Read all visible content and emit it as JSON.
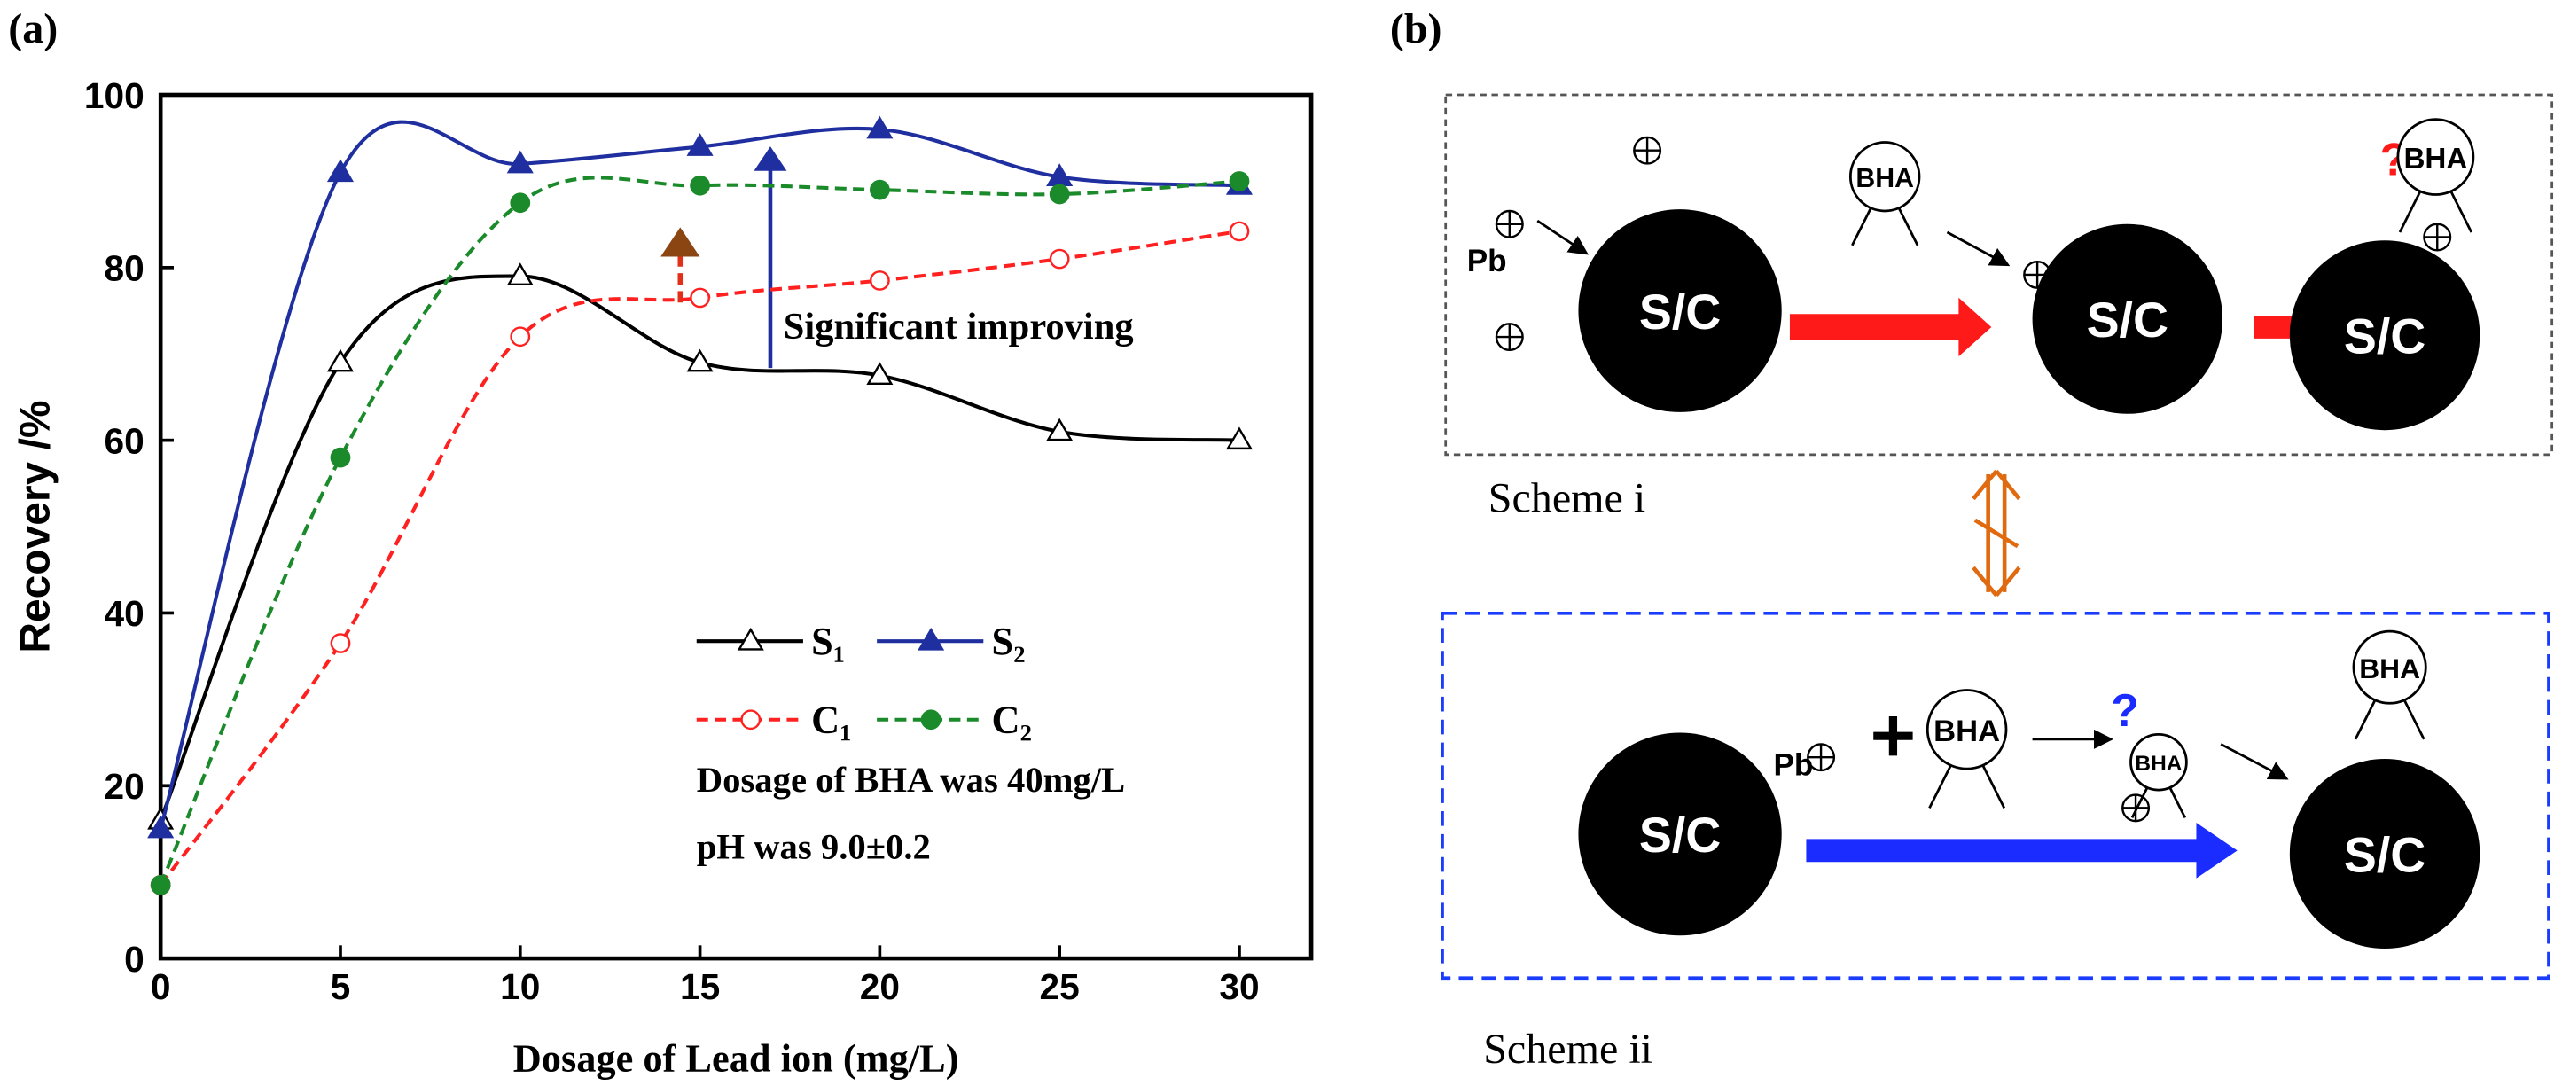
{
  "chart_data": {
    "type": "line",
    "panel_label": "(a)",
    "xlabel": "Dosage of Lead ion (mg/L)",
    "ylabel": "Recovery /%",
    "x": [
      0,
      5,
      10,
      15,
      20,
      25,
      30
    ],
    "series": [
      {
        "name": "S₁",
        "color": "#000000",
        "marker": "triangle",
        "filled": false,
        "dashed": false,
        "values": [
          16,
          69,
          79,
          69,
          67.5,
          61,
          60
        ]
      },
      {
        "name": "S₂",
        "color": "#1f2f9f",
        "marker": "triangle",
        "filled": true,
        "dashed": false,
        "values": [
          15,
          91,
          92,
          94,
          96,
          90.5,
          89.5
        ]
      },
      {
        "name": "C₁",
        "color": "#ff2020",
        "marker": "circle",
        "filled": false,
        "dashed": true,
        "values": [
          8.5,
          36.5,
          72,
          76.5,
          78.5,
          81,
          84.2
        ]
      },
      {
        "name": "C₂",
        "color": "#1a8a2a",
        "marker": "circle",
        "filled": true,
        "dashed": true,
        "values": [
          8.5,
          58,
          87.5,
          89.5,
          89,
          88.5,
          90
        ]
      }
    ],
    "xlim": [
      0,
      32
    ],
    "xticks": [
      0,
      5,
      10,
      15,
      20,
      25,
      30
    ],
    "ylim": [
      0,
      100
    ],
    "yticks": [
      0,
      20,
      40,
      60,
      80,
      100
    ],
    "annotations": [
      "Significant improving",
      "Dosage of BHA was 40mg/L",
      "pH was 9.0±0.2"
    ]
  },
  "diagram": {
    "panel_label": "(b)",
    "scheme_i": {
      "caption": "Scheme i",
      "ion": "Pb",
      "particles": [
        "S/C",
        "S/C",
        "S/C"
      ],
      "collectors": [
        "BHA",
        "BHA"
      ],
      "question": "?"
    },
    "scheme_ii": {
      "caption": "Scheme ii",
      "ion": "Pb",
      "particles": [
        "S/C",
        "S/C"
      ],
      "collectors": [
        "BHA",
        "BHA",
        "BHA"
      ],
      "question": "?"
    }
  }
}
